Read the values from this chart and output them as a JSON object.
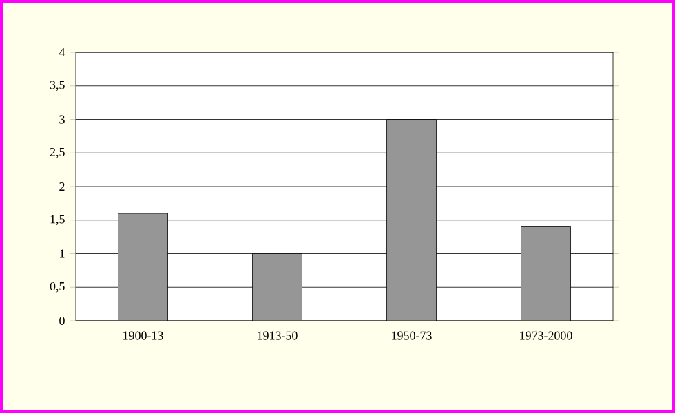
{
  "chart_data": {
    "type": "bar",
    "categories": [
      "1900-13",
      "1913-50",
      "1950-73",
      "1973-2000"
    ],
    "values": [
      1.6,
      1.0,
      3.0,
      1.4
    ],
    "color": "#969696",
    "ylim": [
      0,
      4
    ],
    "yticks": [
      0,
      {
        "value": 0.5,
        "label": "0,5"
      },
      1,
      {
        "value": 1.5,
        "label": "1,5"
      },
      2,
      {
        "value": 2.5,
        "label": "2,5"
      },
      3,
      {
        "value": 3.5,
        "label": "3,5"
      },
      4
    ],
    "grid": "y"
  }
}
